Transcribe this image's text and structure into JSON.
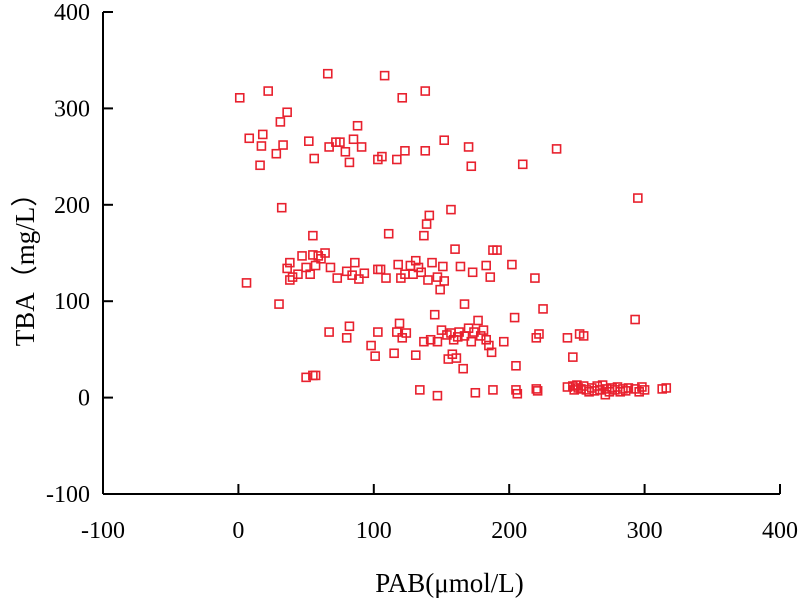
{
  "chart_data": {
    "type": "scatter",
    "xlabel": "PAB(μmol/L)",
    "ylabel": "TBA（mg/L）",
    "xlim": [
      -100,
      400
    ],
    "ylim": [
      -100,
      400
    ],
    "x_ticks": [
      -100,
      0,
      100,
      200,
      300,
      400
    ],
    "y_ticks": [
      -100,
      0,
      100,
      200,
      300,
      400
    ],
    "x_tick_labels": [
      "-100",
      "0",
      "100",
      "200",
      "300",
      "400"
    ],
    "y_tick_labels": [
      "-100",
      "0",
      "100",
      "200",
      "300",
      "400"
    ],
    "grid": false,
    "marker": "open-square",
    "marker_color": "#e8212e",
    "points": [
      [
        1,
        311
      ],
      [
        22,
        318
      ],
      [
        66,
        336
      ],
      [
        108,
        334
      ],
      [
        121,
        311
      ],
      [
        138,
        318
      ],
      [
        8,
        269
      ],
      [
        18,
        273
      ],
      [
        17,
        261
      ],
      [
        31,
        286
      ],
      [
        36,
        296
      ],
      [
        33,
        262
      ],
      [
        28,
        253
      ],
      [
        52,
        266
      ],
      [
        56,
        248
      ],
      [
        67,
        260
      ],
      [
        72,
        265
      ],
      [
        75,
        265
      ],
      [
        79,
        255
      ],
      [
        82,
        244
      ],
      [
        85,
        268
      ],
      [
        88,
        282
      ],
      [
        91,
        260
      ],
      [
        103,
        247
      ],
      [
        106,
        250
      ],
      [
        117,
        247
      ],
      [
        123,
        256
      ],
      [
        138,
        256
      ],
      [
        152,
        267
      ],
      [
        170,
        260
      ],
      [
        172,
        240
      ],
      [
        210,
        242
      ],
      [
        235,
        258
      ],
      [
        16,
        241
      ],
      [
        32,
        197
      ],
      [
        295,
        207
      ],
      [
        139,
        180
      ],
      [
        141,
        189
      ],
      [
        157,
        195
      ],
      [
        111,
        170
      ],
      [
        137,
        168
      ],
      [
        55,
        168
      ],
      [
        160,
        154
      ],
      [
        188,
        153
      ],
      [
        191,
        153
      ],
      [
        202,
        138
      ],
      [
        219,
        124
      ],
      [
        225,
        92
      ],
      [
        38,
        140
      ],
      [
        40,
        125
      ],
      [
        44,
        128
      ],
      [
        47,
        147
      ],
      [
        50,
        135
      ],
      [
        53,
        128
      ],
      [
        55,
        148
      ],
      [
        57,
        137
      ],
      [
        59,
        147
      ],
      [
        61,
        144
      ],
      [
        64,
        150
      ],
      [
        68,
        135
      ],
      [
        73,
        124
      ],
      [
        80,
        131
      ],
      [
        84,
        127
      ],
      [
        86,
        140
      ],
      [
        89,
        123
      ],
      [
        93,
        129
      ],
      [
        103,
        133
      ],
      [
        105,
        133
      ],
      [
        109,
        124
      ],
      [
        118,
        138
      ],
      [
        120,
        124
      ],
      [
        123,
        128
      ],
      [
        127,
        137
      ],
      [
        129,
        128
      ],
      [
        131,
        142
      ],
      [
        133,
        135
      ],
      [
        135,
        130
      ],
      [
        140,
        122
      ],
      [
        143,
        140
      ],
      [
        147,
        125
      ],
      [
        149,
        112
      ],
      [
        151,
        136
      ],
      [
        152,
        121
      ],
      [
        164,
        136
      ],
      [
        173,
        130
      ],
      [
        183,
        137
      ],
      [
        186,
        125
      ],
      [
        36,
        134
      ],
      [
        38,
        122
      ],
      [
        6,
        119
      ],
      [
        30,
        97
      ],
      [
        167,
        97
      ],
      [
        204,
        83
      ],
      [
        293,
        81
      ],
      [
        145,
        86
      ],
      [
        67,
        68
      ],
      [
        80,
        62
      ],
      [
        82,
        74
      ],
      [
        98,
        54
      ],
      [
        101,
        43
      ],
      [
        103,
        68
      ],
      [
        115,
        46
      ],
      [
        117,
        68
      ],
      [
        119,
        77
      ],
      [
        121,
        62
      ],
      [
        124,
        67
      ],
      [
        131,
        44
      ],
      [
        137,
        58
      ],
      [
        142,
        60
      ],
      [
        147,
        58
      ],
      [
        150,
        70
      ],
      [
        154,
        65
      ],
      [
        157,
        67
      ],
      [
        159,
        60
      ],
      [
        162,
        63
      ],
      [
        163,
        68
      ],
      [
        167,
        64
      ],
      [
        170,
        72
      ],
      [
        172,
        58
      ],
      [
        174,
        68
      ],
      [
        177,
        80
      ],
      [
        179,
        64
      ],
      [
        181,
        70
      ],
      [
        183,
        60
      ],
      [
        185,
        54
      ],
      [
        187,
        47
      ],
      [
        196,
        58
      ],
      [
        205,
        33
      ],
      [
        220,
        62
      ],
      [
        222,
        66
      ],
      [
        243,
        62
      ],
      [
        247,
        42
      ],
      [
        252,
        66
      ],
      [
        255,
        64
      ],
      [
        155,
        40
      ],
      [
        158,
        45
      ],
      [
        161,
        41
      ],
      [
        166,
        30
      ],
      [
        50,
        21
      ],
      [
        55,
        23
      ],
      [
        57,
        23
      ],
      [
        134,
        8
      ],
      [
        147,
        2
      ],
      [
        175,
        5
      ],
      [
        188,
        8
      ],
      [
        205,
        8
      ],
      [
        206,
        4
      ],
      [
        220,
        9
      ],
      [
        221,
        7
      ],
      [
        243,
        11
      ],
      [
        247,
        12
      ],
      [
        248,
        8
      ],
      [
        250,
        13
      ],
      [
        251,
        10
      ],
      [
        253,
        9
      ],
      [
        255,
        12
      ],
      [
        257,
        8
      ],
      [
        259,
        6
      ],
      [
        261,
        10
      ],
      [
        263,
        7
      ],
      [
        265,
        12
      ],
      [
        267,
        8
      ],
      [
        269,
        13
      ],
      [
        271,
        3
      ],
      [
        272,
        9
      ],
      [
        274,
        6
      ],
      [
        276,
        10
      ],
      [
        278,
        8
      ],
      [
        280,
        11
      ],
      [
        282,
        6
      ],
      [
        284,
        9
      ],
      [
        286,
        7
      ],
      [
        288,
        10
      ],
      [
        293,
        9
      ],
      [
        296,
        6
      ],
      [
        298,
        11
      ],
      [
        300,
        8
      ],
      [
        313,
        9
      ],
      [
        316,
        10
      ]
    ]
  }
}
